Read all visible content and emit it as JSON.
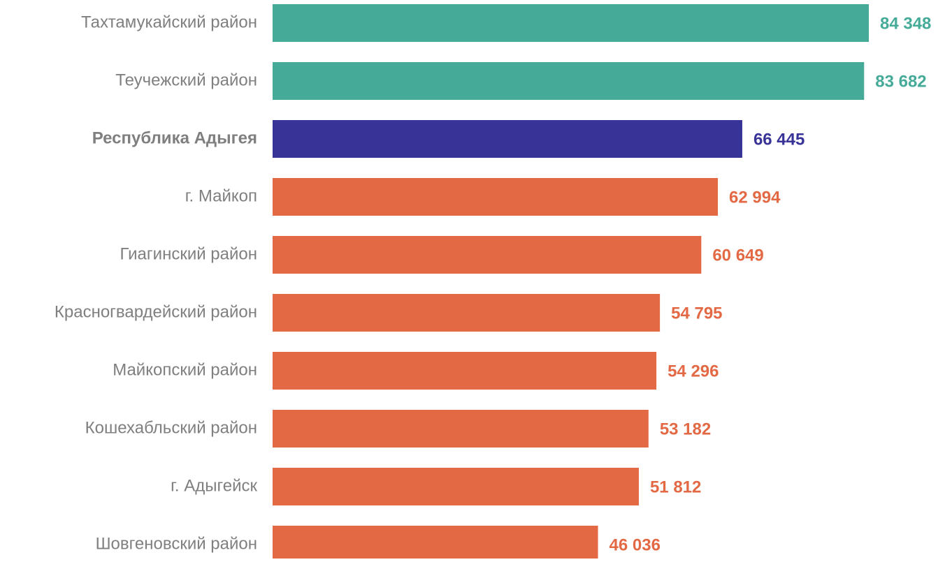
{
  "chart_data": {
    "type": "barh",
    "categories": [
      "Тахтамукайский район",
      "Теучежский район",
      "Республика Адыгея",
      "г. Майкоп",
      "Гиагинский район",
      "Красногвардейский район",
      "Майкопский район",
      "Кошехабльский район",
      "г. Адыгейск",
      "Шовгеновский район"
    ],
    "values": [
      84348,
      83682,
      66445,
      62994,
      60649,
      54795,
      54296,
      53182,
      51812,
      46036
    ],
    "value_labels": [
      "84 348",
      "83 682",
      "66 445",
      "62 994",
      "60 649",
      "54 795",
      "54 296",
      "53 182",
      "51 812",
      "46 036"
    ],
    "colors": [
      "#45ab98",
      "#45ab98",
      "#373397",
      "#e36945",
      "#e36945",
      "#e36945",
      "#e36945",
      "#e36945",
      "#e36945",
      "#e36945"
    ],
    "bold": [
      false,
      false,
      true,
      false,
      false,
      false,
      false,
      false,
      false,
      false
    ]
  }
}
